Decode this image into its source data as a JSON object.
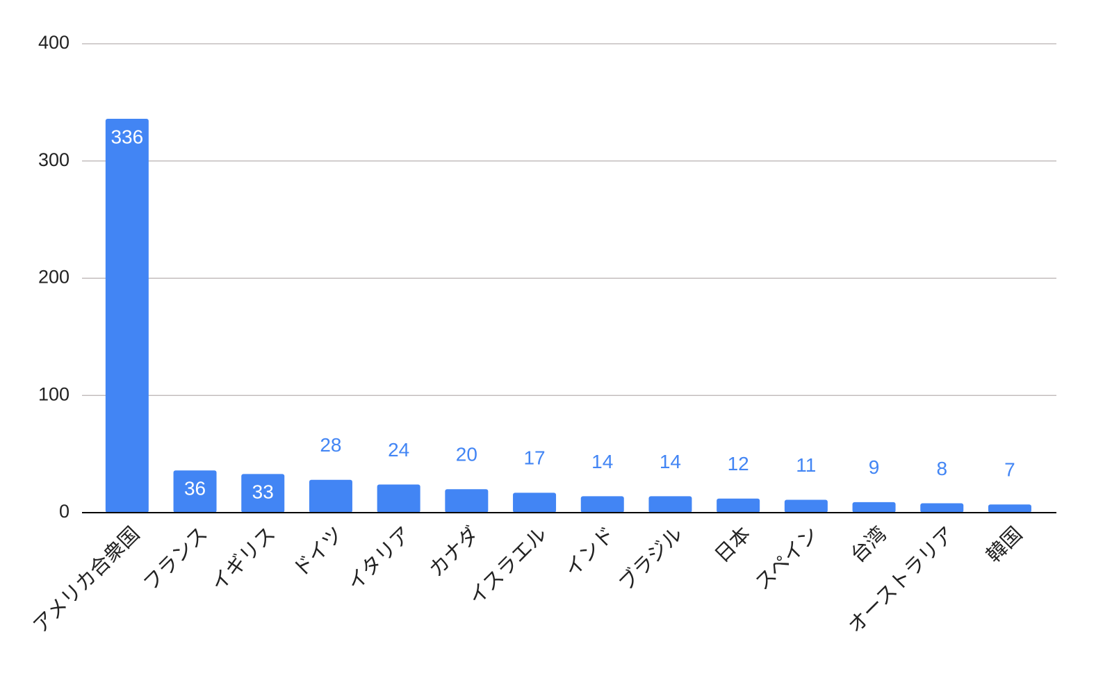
{
  "chart_data": {
    "type": "bar",
    "categories": [
      "アメリカ合衆国",
      "フランス",
      "イギリス",
      "ドイツ",
      "イタリア",
      "カナダ",
      "イスラエル",
      "インド",
      "ブラジル",
      "日本",
      "スペイン",
      "台湾",
      "オーストラリア",
      "韓国"
    ],
    "values": [
      336,
      36,
      33,
      28,
      24,
      20,
      17,
      14,
      14,
      12,
      11,
      9,
      8,
      7
    ],
    "color": "#4285f4",
    "ylim": [
      0,
      400
    ],
    "yticks": [
      0,
      100,
      200,
      300,
      400
    ],
    "grid": true
  }
}
